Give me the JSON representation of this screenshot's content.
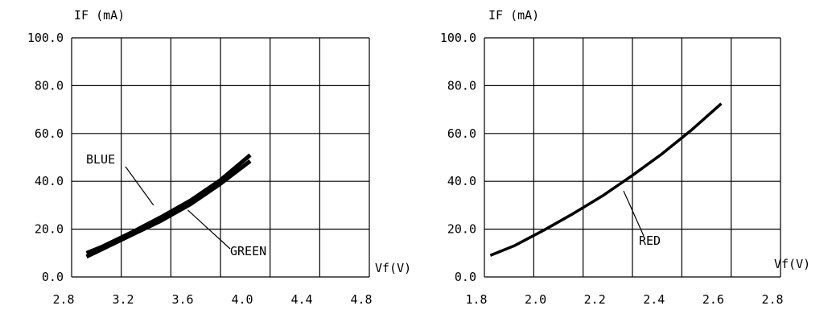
{
  "chart_data": [
    {
      "type": "line",
      "ylabel": "IF (mA)",
      "xlabel": "Vf(V)",
      "x_ticks": [
        "2.8",
        "3.2",
        "3.6",
        "4.0",
        "4.4",
        "4.8"
      ],
      "y_ticks": [
        "0.0",
        "20.0",
        "40.0",
        "60.0",
        "80.0",
        "100.0"
      ],
      "xlim": [
        2.8,
        4.8
      ],
      "ylim": [
        0,
        100
      ],
      "grid": true,
      "series": [
        {
          "name": "BLUE",
          "x": [
            2.9,
            3.0,
            3.2,
            3.4,
            3.6,
            3.8,
            4.0
          ],
          "y": [
            10,
            12.5,
            18.5,
            25,
            32,
            40.5,
            51
          ],
          "label_anchor": [
            3.35,
            30
          ]
        },
        {
          "name": "GREEN",
          "x": [
            2.9,
            3.0,
            3.2,
            3.4,
            3.6,
            3.8,
            4.0
          ],
          "y": [
            8.5,
            11.5,
            17.5,
            23.5,
            30.5,
            39,
            48.5
          ],
          "label_anchor": [
            3.58,
            28
          ]
        }
      ]
    },
    {
      "type": "line",
      "ylabel": "IF (mA)",
      "xlabel": "Vf(V)",
      "x_ticks": [
        "1.8",
        "2.0",
        "2.2",
        "2.4",
        "2.6",
        "2.8"
      ],
      "y_ticks": [
        "0.0",
        "20.0",
        "40.0",
        "60.0",
        "80.0",
        "100.0"
      ],
      "xlim": [
        1.8,
        2.8
      ],
      "ylim": [
        0,
        100
      ],
      "grid": true,
      "series": [
        {
          "name": "RED",
          "x": [
            1.82,
            1.9,
            2.0,
            2.1,
            2.2,
            2.3,
            2.4,
            2.5,
            2.6
          ],
          "y": [
            9,
            13,
            19.5,
            26.5,
            34,
            42.5,
            51.5,
            61.5,
            72.5
          ],
          "label_anchor": [
            2.27,
            36
          ]
        }
      ]
    }
  ]
}
